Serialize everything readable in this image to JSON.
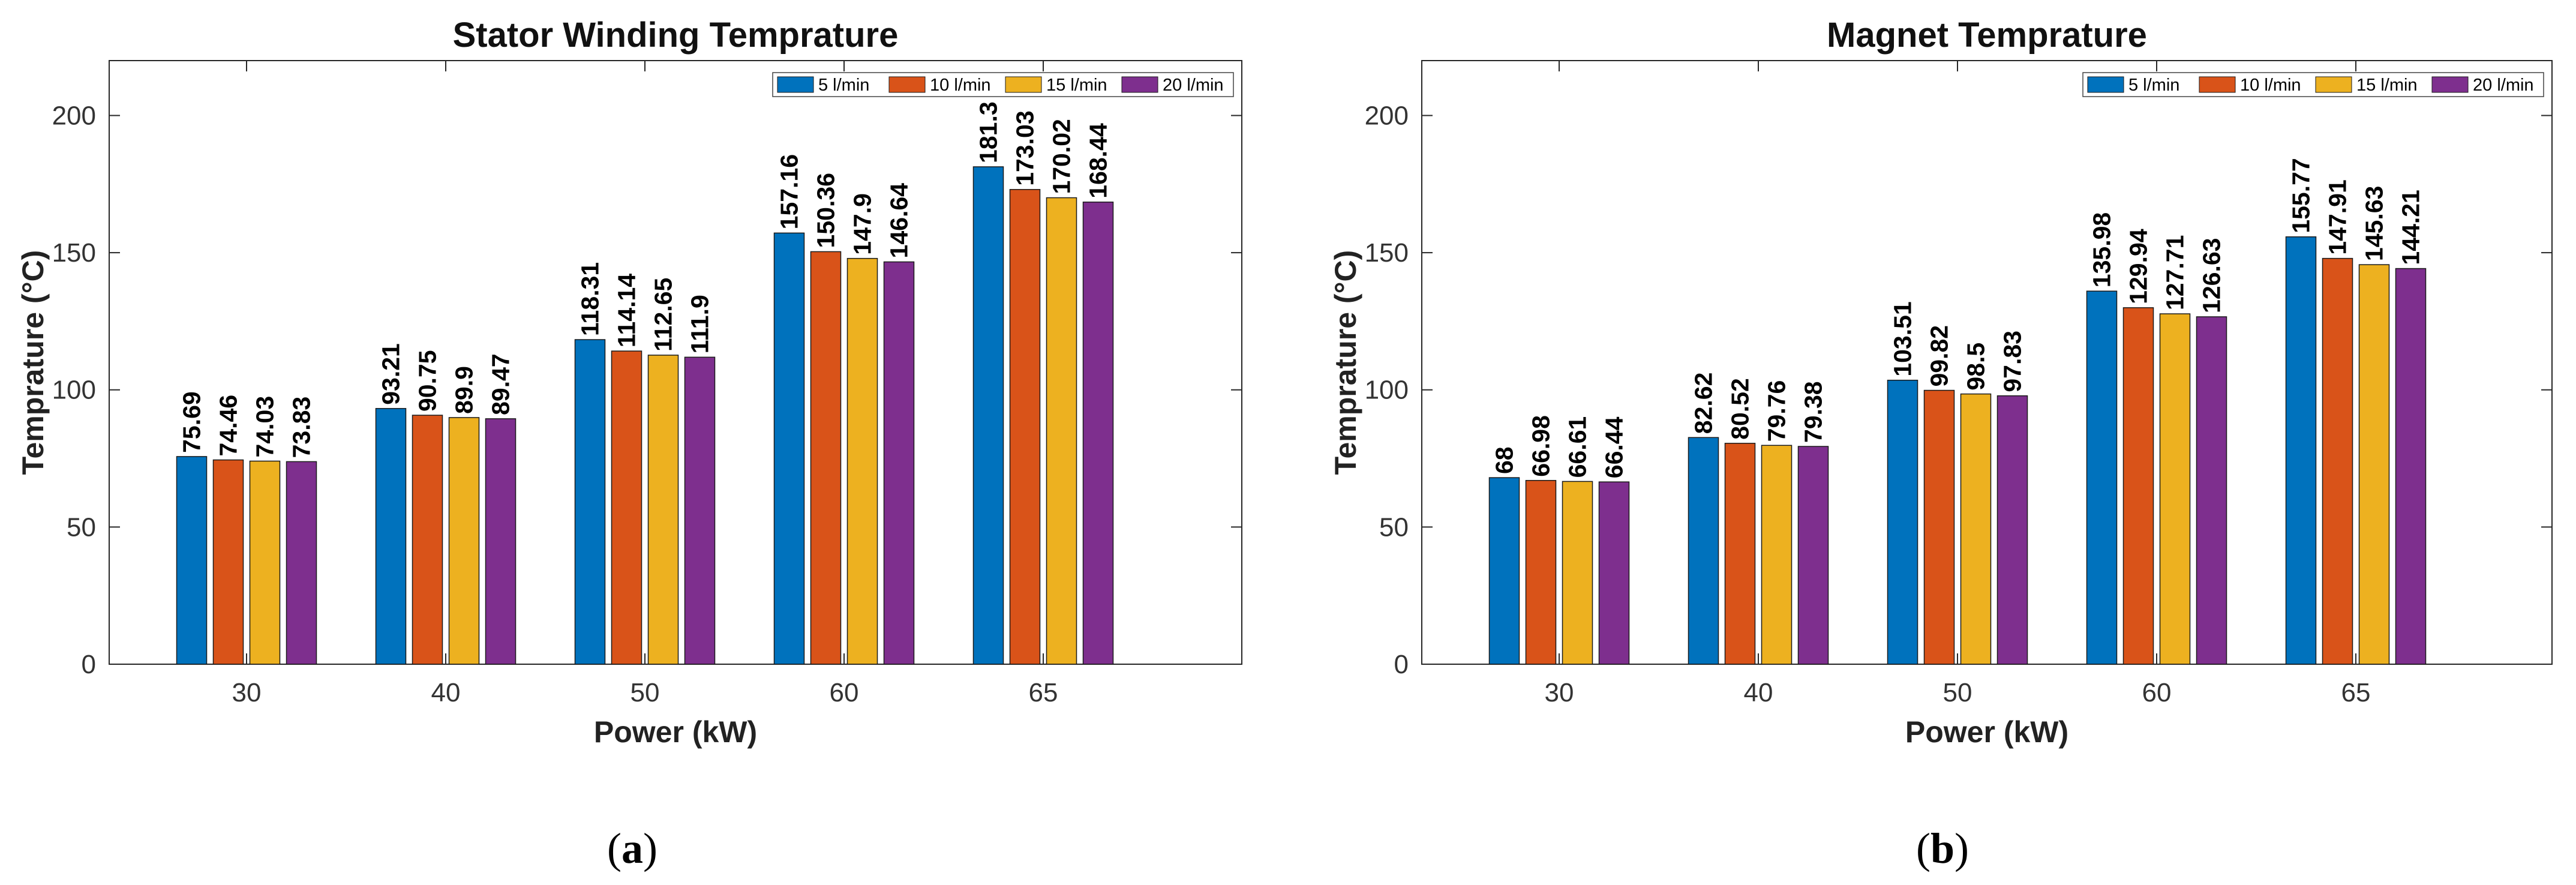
{
  "chart_data": [
    {
      "type": "bar",
      "title": "Stator Winding Temprature",
      "xlabel": "Power (kW)",
      "ylabel": "Temprature (°C)",
      "categories": [
        "30",
        "40",
        "50",
        "60",
        "65"
      ],
      "ylim": [
        0,
        220
      ],
      "yticks": [
        0,
        50,
        100,
        150,
        200
      ],
      "grid": false,
      "legend_position": "top-right",
      "legend_orientation": "horizontal",
      "series": [
        {
          "name": "5 l/min",
          "color": "#0072BD",
          "values": [
            75.69,
            93.21,
            118.31,
            157.16,
            181.3
          ]
        },
        {
          "name": "10 l/min",
          "color": "#D95319",
          "values": [
            74.46,
            90.75,
            114.14,
            150.36,
            173.03
          ]
        },
        {
          "name": "15 l/min",
          "color": "#EDB120",
          "values": [
            74.03,
            89.9,
            112.65,
            147.9,
            170.02
          ]
        },
        {
          "name": "20 l/min",
          "color": "#7E2F8E",
          "values": [
            73.83,
            89.47,
            111.9,
            146.64,
            168.44
          ]
        }
      ],
      "data_labels": [
        [
          "75.69",
          "93.21",
          "118.31",
          "157.16",
          "181.3"
        ],
        [
          "74.46",
          "90.75",
          "114.14",
          "150.36",
          "173.03"
        ],
        [
          "74.03",
          "89.9",
          "112.65",
          "147.9",
          "170.02"
        ],
        [
          "73.83",
          "89.47",
          "111.9",
          "146.64",
          "168.44"
        ]
      ]
    },
    {
      "type": "bar",
      "title": "Magnet Temprature",
      "xlabel": "Power (kW)",
      "ylabel": "Temprature (°C)",
      "categories": [
        "30",
        "40",
        "50",
        "60",
        "65"
      ],
      "ylim": [
        0,
        220
      ],
      "yticks": [
        0,
        50,
        100,
        150,
        200
      ],
      "grid": false,
      "legend_position": "top-right",
      "legend_orientation": "horizontal",
      "series": [
        {
          "name": "5 l/min",
          "color": "#0072BD",
          "values": [
            68,
            82.62,
            103.51,
            135.98,
            155.77
          ]
        },
        {
          "name": "10 l/min",
          "color": "#D95319",
          "values": [
            66.98,
            80.52,
            99.82,
            129.94,
            147.91
          ]
        },
        {
          "name": "15 l/min",
          "color": "#EDB120",
          "values": [
            66.61,
            79.76,
            98.5,
            127.71,
            145.63
          ]
        },
        {
          "name": "20 l/min",
          "color": "#7E2F8E",
          "values": [
            66.44,
            79.38,
            97.83,
            126.63,
            144.21
          ]
        }
      ],
      "data_labels": [
        [
          "68",
          "82.62",
          "103.51",
          "135.98",
          "155.77"
        ],
        [
          "66.98",
          "80.52",
          "99.82",
          "129.94",
          "147.91"
        ],
        [
          "66.61",
          "79.76",
          "98.5",
          "127.71",
          "145.63"
        ],
        [
          "66.44",
          "79.38",
          "97.83",
          "126.63",
          "144.21"
        ]
      ]
    }
  ],
  "captions": [
    "a",
    "b"
  ],
  "colors": {
    "axis": "#262626",
    "background": "#ffffff"
  }
}
